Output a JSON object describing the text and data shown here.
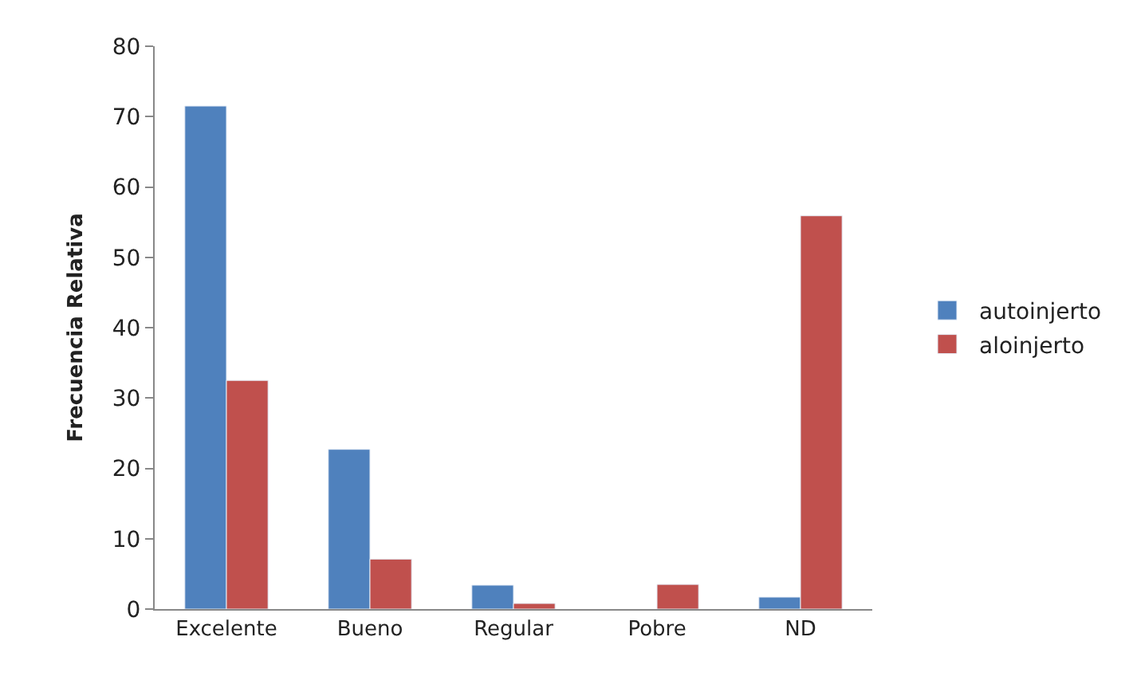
{
  "chart_data": {
    "type": "bar",
    "ylabel": "Frecuencia Relativa",
    "categories": [
      "Excelente",
      "Bueno",
      "Regular",
      "Pobre",
      "ND"
    ],
    "series": [
      {
        "name": "autoinjerto",
        "color": "#4f81bd",
        "values": [
          71.5,
          22.7,
          3.4,
          null,
          1.7
        ]
      },
      {
        "name": "aloinjerto",
        "color": "#c0504d",
        "values": [
          32.5,
          7.1,
          0.8,
          3.5,
          55.9
        ]
      }
    ],
    "ylim": [
      0,
      80
    ],
    "yticks": [
      0,
      10,
      20,
      30,
      40,
      50,
      60,
      70,
      80
    ],
    "grid": false,
    "legend": "right"
  }
}
